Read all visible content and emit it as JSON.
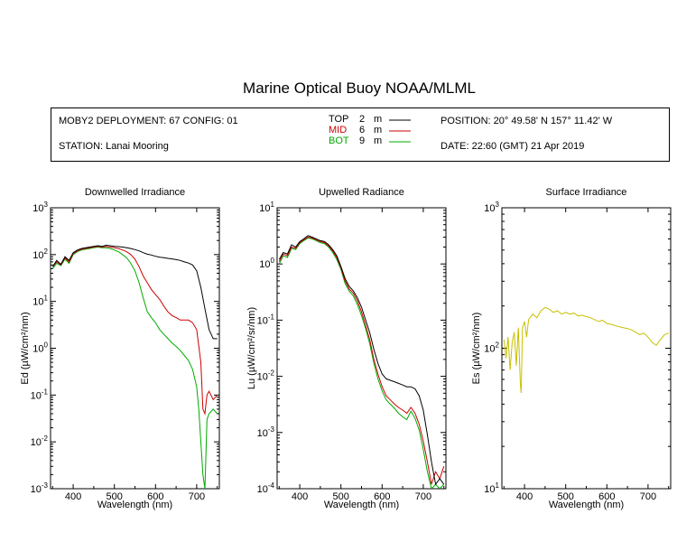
{
  "title": "Marine Optical Buoy NOAA/MLML",
  "info": {
    "deployment": "MOBY2 DEPLOYMENT: 67 CONFIG: 01",
    "station": "STATION: Lanai Mooring",
    "position": "POSITION: 20° 49.58' N   157° 11.42' W",
    "date": "DATE: 22:60 (GMT) 21 Apr 2019",
    "legend": [
      {
        "label": "TOP",
        "depth": "2",
        "unit": "m",
        "color": "#000000"
      },
      {
        "label": "MID",
        "depth": "6",
        "unit": "m",
        "color": "#cc0000"
      },
      {
        "label": "BOT",
        "depth": "9",
        "unit": "m",
        "color": "#00aa00"
      }
    ]
  },
  "colors": {
    "top": "#000000",
    "mid": "#cc0000",
    "bot": "#00aa00",
    "surface": "#c8c000"
  },
  "chart_data": [
    {
      "type": "line",
      "title": "Downwelled Irradiance",
      "xlabel": "Wavelength (nm)",
      "ylabel": "Ed  (µW/cm²/nm)",
      "xlim": [
        345,
        755
      ],
      "ylim": [
        0.001,
        1000
      ],
      "yscale": "log",
      "xticks": [
        400,
        500,
        600,
        700
      ],
      "yticks": [
        {
          "base": "10",
          "exp": "-3"
        },
        {
          "base": "10",
          "exp": "-2"
        },
        {
          "base": "10",
          "exp": "-1"
        },
        {
          "base": "10",
          "exp": "0"
        },
        {
          "base": "10",
          "exp": "1"
        },
        {
          "base": "10",
          "exp": "2"
        },
        {
          "base": "10",
          "exp": "3"
        }
      ],
      "series": [
        {
          "name": "TOP",
          "color": "#000000",
          "x": [
            350,
            360,
            370,
            380,
            390,
            400,
            410,
            420,
            430,
            440,
            450,
            460,
            470,
            480,
            490,
            500,
            510,
            520,
            530,
            540,
            550,
            560,
            570,
            580,
            590,
            600,
            610,
            620,
            630,
            640,
            650,
            660,
            670,
            680,
            690,
            700,
            710,
            720,
            730,
            740,
            750
          ],
          "y": [
            55,
            75,
            62,
            90,
            75,
            110,
            125,
            135,
            140,
            145,
            150,
            155,
            150,
            158,
            155,
            150,
            148,
            145,
            140,
            135,
            128,
            120,
            110,
            102,
            98,
            92,
            88,
            86,
            83,
            81,
            78,
            75,
            70,
            66,
            60,
            45,
            20,
            7,
            2.5,
            1.6,
            1.6
          ]
        },
        {
          "name": "MID",
          "color": "#cc0000",
          "x": [
            350,
            360,
            370,
            380,
            390,
            400,
            410,
            420,
            430,
            440,
            450,
            460,
            470,
            480,
            490,
            500,
            510,
            520,
            530,
            540,
            550,
            560,
            570,
            580,
            590,
            600,
            610,
            620,
            630,
            640,
            650,
            660,
            670,
            680,
            690,
            700,
            710,
            715,
            720,
            725,
            730,
            740,
            750
          ],
          "y": [
            55,
            70,
            60,
            85,
            70,
            105,
            120,
            130,
            135,
            140,
            145,
            150,
            145,
            150,
            145,
            140,
            135,
            125,
            115,
            100,
            80,
            55,
            35,
            25,
            18,
            14,
            11,
            8,
            6,
            5,
            4.5,
            4,
            4,
            4,
            3.5,
            2.5,
            0.5,
            0.05,
            0.04,
            0.1,
            0.12,
            0.08,
            0.1
          ]
        },
        {
          "name": "BOT",
          "color": "#00aa00",
          "x": [
            350,
            360,
            370,
            380,
            390,
            400,
            410,
            420,
            430,
            440,
            450,
            460,
            470,
            480,
            490,
            500,
            510,
            520,
            530,
            540,
            550,
            560,
            570,
            580,
            590,
            600,
            610,
            620,
            630,
            640,
            650,
            660,
            670,
            680,
            690,
            700,
            705,
            710,
            715,
            720,
            725,
            730,
            740,
            750
          ],
          "y": [
            50,
            65,
            58,
            80,
            65,
            100,
            115,
            125,
            130,
            135,
            140,
            145,
            140,
            140,
            135,
            125,
            115,
            100,
            85,
            65,
            45,
            25,
            12,
            6,
            4.5,
            3.5,
            2.5,
            2,
            1.6,
            1.3,
            1.1,
            0.9,
            0.7,
            0.55,
            0.35,
            0.15,
            0.05,
            0.01,
            0.002,
            0.001,
            0.03,
            0.04,
            0.05,
            0.04
          ]
        }
      ]
    },
    {
      "type": "line",
      "title": "Upwelled Radiance",
      "xlabel": "Wavelength (nm)",
      "ylabel": "Lu  (µW/cm²/sr/nm)",
      "xlim": [
        345,
        755
      ],
      "ylim": [
        0.0001,
        10
      ],
      "yscale": "log",
      "xticks": [
        400,
        500,
        600,
        700
      ],
      "yticks": [
        {
          "base": "10",
          "exp": "-4"
        },
        {
          "base": "10",
          "exp": "-3"
        },
        {
          "base": "10",
          "exp": "-2"
        },
        {
          "base": "10",
          "exp": "-1"
        },
        {
          "base": "10",
          "exp": "0"
        },
        {
          "base": "10",
          "exp": "1"
        }
      ],
      "series": [
        {
          "name": "TOP",
          "color": "#000000",
          "x": [
            350,
            360,
            370,
            380,
            390,
            400,
            410,
            420,
            430,
            440,
            450,
            460,
            470,
            480,
            490,
            500,
            510,
            520,
            530,
            540,
            550,
            560,
            570,
            580,
            590,
            600,
            610,
            620,
            630,
            640,
            650,
            660,
            670,
            680,
            690,
            700,
            710,
            720,
            730,
            740,
            750
          ],
          "y": [
            1.2,
            1.6,
            1.5,
            2.2,
            2.0,
            2.5,
            2.8,
            3.2,
            3.0,
            2.8,
            2.6,
            2.5,
            2.2,
            1.8,
            1.4,
            0.9,
            0.55,
            0.4,
            0.33,
            0.25,
            0.17,
            0.1,
            0.06,
            0.03,
            0.017,
            0.011,
            0.009,
            0.0085,
            0.008,
            0.0075,
            0.007,
            0.0065,
            0.0065,
            0.006,
            0.0045,
            0.0025,
            0.0009,
            0.0003,
            0.00012,
            0.00015,
            0.00012
          ]
        },
        {
          "name": "MID",
          "color": "#cc0000",
          "x": [
            350,
            360,
            370,
            380,
            390,
            400,
            410,
            420,
            430,
            440,
            450,
            460,
            470,
            480,
            490,
            500,
            510,
            520,
            530,
            540,
            550,
            560,
            570,
            580,
            590,
            600,
            610,
            620,
            630,
            640,
            650,
            660,
            670,
            680,
            690,
            700,
            710,
            720,
            730,
            740,
            750
          ],
          "y": [
            1.1,
            1.5,
            1.4,
            2.0,
            1.9,
            2.4,
            2.7,
            3.0,
            2.9,
            2.7,
            2.5,
            2.4,
            2.1,
            1.7,
            1.3,
            0.85,
            0.5,
            0.36,
            0.3,
            0.22,
            0.14,
            0.08,
            0.045,
            0.02,
            0.011,
            0.0065,
            0.0045,
            0.0038,
            0.0032,
            0.0028,
            0.0025,
            0.0022,
            0.0028,
            0.0022,
            0.0014,
            0.0007,
            0.0003,
            0.00012,
            0.0002,
            0.00015,
            0.00025
          ]
        },
        {
          "name": "BOT",
          "color": "#00aa00",
          "x": [
            350,
            360,
            370,
            380,
            390,
            400,
            410,
            420,
            430,
            440,
            450,
            460,
            470,
            480,
            490,
            500,
            510,
            520,
            530,
            540,
            550,
            560,
            570,
            580,
            590,
            600,
            610,
            620,
            630,
            640,
            650,
            660,
            670,
            680,
            690,
            700,
            710,
            720,
            730,
            740,
            750
          ],
          "y": [
            1.0,
            1.4,
            1.3,
            1.9,
            1.8,
            2.3,
            2.6,
            2.9,
            2.8,
            2.6,
            2.4,
            2.3,
            2.0,
            1.6,
            1.2,
            0.8,
            0.45,
            0.33,
            0.27,
            0.19,
            0.12,
            0.07,
            0.038,
            0.017,
            0.009,
            0.0055,
            0.0038,
            0.0032,
            0.0027,
            0.0022,
            0.0019,
            0.0017,
            0.0024,
            0.0018,
            0.0011,
            0.0005,
            0.0002,
            0.0001,
            0.00012,
            0.0001,
            0.00012
          ]
        }
      ]
    },
    {
      "type": "line",
      "title": "Surface Irradiance",
      "xlabel": "Wavelength (nm)",
      "ylabel": "Es  (µW/cm²/nm)",
      "xlim": [
        345,
        755
      ],
      "ylim": [
        10,
        1000
      ],
      "yscale": "log",
      "xticks": [
        400,
        500,
        600,
        700
      ],
      "yticks": [
        {
          "base": "10",
          "exp": "1"
        },
        {
          "base": "10",
          "exp": "2"
        },
        {
          "base": "10",
          "exp": "3"
        }
      ],
      "series": [
        {
          "name": "Es",
          "color": "#c8c000",
          "x": [
            350,
            355,
            360,
            365,
            370,
            375,
            380,
            385,
            390,
            392,
            395,
            400,
            405,
            410,
            420,
            430,
            440,
            450,
            460,
            470,
            480,
            490,
            500,
            510,
            520,
            530,
            540,
            550,
            560,
            570,
            580,
            590,
            600,
            610,
            620,
            630,
            640,
            650,
            660,
            670,
            680,
            690,
            700,
            710,
            720,
            730,
            740,
            750
          ],
          "y": [
            115,
            85,
            120,
            70,
            110,
            130,
            75,
            140,
            55,
            48,
            140,
            155,
            120,
            160,
            175,
            165,
            185,
            195,
            190,
            180,
            185,
            175,
            180,
            175,
            178,
            170,
            172,
            168,
            165,
            160,
            155,
            158,
            150,
            148,
            145,
            142,
            140,
            138,
            135,
            130,
            125,
            128,
            120,
            110,
            105,
            115,
            125,
            128
          ]
        }
      ]
    }
  ]
}
